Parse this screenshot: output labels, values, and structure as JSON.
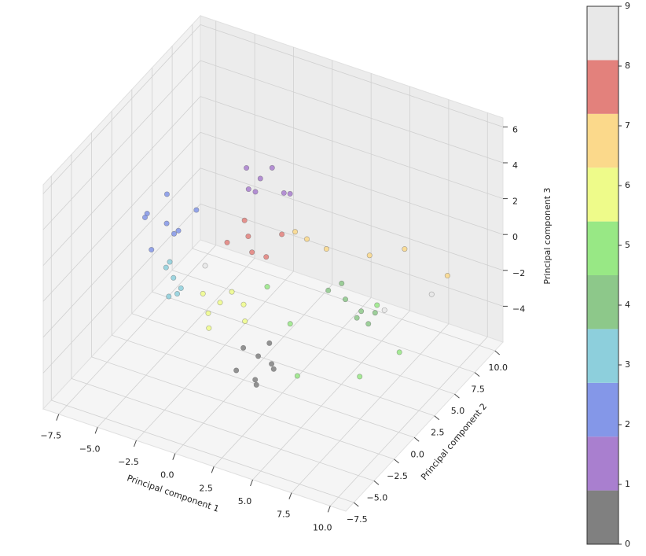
{
  "chart_data": {
    "type": "scatter3d",
    "xlabel": "Principal component 1",
    "ylabel": "Principal component 2",
    "zlabel": "Principal component 3",
    "xlim": [
      -8.5,
      11
    ],
    "ylim": [
      -8.5,
      11
    ],
    "zlim": [
      -6,
      6.5
    ],
    "xticks": [
      {
        "value": -7.5,
        "label": "−7.5"
      },
      {
        "value": -5,
        "label": "−5.0"
      },
      {
        "value": -2.5,
        "label": "−2.5"
      },
      {
        "value": 0,
        "label": "0.0"
      },
      2.5,
      {
        "value": 5,
        "label": "5.0"
      },
      7.5,
      {
        "value": 10,
        "label": "10.0"
      }
    ],
    "yticks": [
      {
        "value": -7.5,
        "label": "−7.5"
      },
      {
        "value": -5,
        "label": "−5.0"
      },
      {
        "value": -2.5,
        "label": "−2.5"
      },
      {
        "value": 0,
        "label": "0.0"
      },
      2.5,
      {
        "value": 5,
        "label": "5.0"
      },
      7.5,
      {
        "value": 10,
        "label": "10.0"
      }
    ],
    "zticks": [
      {
        "value": -4,
        "label": "−4"
      },
      {
        "value": -2,
        "label": "−2"
      },
      0,
      2,
      4,
      6
    ],
    "grid": true,
    "clim": [
      0,
      9
    ],
    "cticks": [
      0,
      1,
      2,
      3,
      4,
      5,
      6,
      7,
      8,
      9
    ],
    "colormap": [
      "#808080",
      "#a97fcf",
      "#8497e8",
      "#8dcfdc",
      "#8dc88a",
      "#98e885",
      "#eefb8a",
      "#fbd98b",
      "#e3817c",
      "#e8e8e8"
    ],
    "x": [
      2.5,
      3.1,
      1.8,
      2.9,
      2.2,
      3.6,
      1.5,
      2.7,
      -1,
      -0.5,
      -1.5,
      0,
      -2,
      -0.8,
      0.5,
      -6,
      -7,
      -5.5,
      -6.5,
      -5,
      -7.5,
      -4.5,
      -6.2,
      -4,
      -4.5,
      -3.5,
      -5,
      -3,
      -4.2,
      5,
      6,
      4.5,
      5.5,
      7,
      4,
      6.5,
      3,
      8,
      1,
      6,
      4.5,
      9,
      -1,
      -0.5,
      -1.5,
      0,
      -2,
      -1.2,
      0.5,
      2,
      3,
      1.5,
      5,
      7,
      9.5,
      -1,
      -0.5,
      -1.5,
      0,
      -2,
      0.8,
      7,
      -3,
      9
    ],
    "y": [
      -3,
      -2.5,
      -3.5,
      -4,
      -2.8,
      -3.2,
      -3.8,
      -2,
      4,
      4.5,
      3.5,
      5,
      4.2,
      3,
      4.8,
      2,
      1.5,
      2.5,
      3,
      1,
      2.2,
      2.8,
      0.5,
      -1,
      -0.5,
      -1.5,
      0,
      -2,
      -1.2,
      3,
      2.5,
      3.5,
      4,
      2,
      2.8,
      3.8,
      0,
      -1,
      1,
      5,
      -2,
      2,
      -1,
      -0.5,
      -1.5,
      0,
      -1.2,
      -2,
      -0.8,
      4,
      4.5,
      3.5,
      6,
      6.5,
      7,
      2.5,
      2,
      3,
      2.8,
      1.8,
      3.2,
      4,
      1,
      6
    ],
    "z": [
      -2.5,
      -3,
      -2,
      -3.5,
      -4,
      -2.8,
      -3.2,
      -2.2,
      3,
      3.5,
      2.5,
      2,
      3.2,
      2.8,
      2.2,
      0,
      0.5,
      -0.5,
      1,
      0.2,
      -0.2,
      0.8,
      -0.8,
      -1,
      -0.5,
      -1.5,
      -1.2,
      -0.8,
      -2,
      -1.5,
      -2,
      -1,
      -2.5,
      -1.8,
      -1.2,
      -2.2,
      -2,
      -3,
      -1,
      -2.5,
      -3.5,
      -2.8,
      -1.5,
      -1,
      -2,
      -1.8,
      -1.2,
      -2.5,
      -2.2,
      0.5,
      0,
      1,
      -0.5,
      0.2,
      -0.8,
      0.5,
      0,
      1,
      -0.5,
      0.2,
      0.8,
      -2,
      -1,
      -1.5
    ],
    "c": [
      0,
      0,
      0,
      0,
      0,
      0,
      0,
      0,
      1,
      1,
      1,
      1,
      1,
      1,
      1,
      2,
      2,
      2,
      2,
      2,
      2,
      2,
      2,
      3,
      3,
      3,
      3,
      3,
      3,
      4,
      4,
      4,
      4,
      4,
      4,
      4,
      5,
      5,
      5,
      5,
      5,
      5,
      6,
      6,
      6,
      6,
      6,
      6,
      6,
      7,
      7,
      7,
      7,
      7,
      7,
      8,
      8,
      8,
      8,
      8,
      8,
      9,
      9,
      9
    ]
  }
}
